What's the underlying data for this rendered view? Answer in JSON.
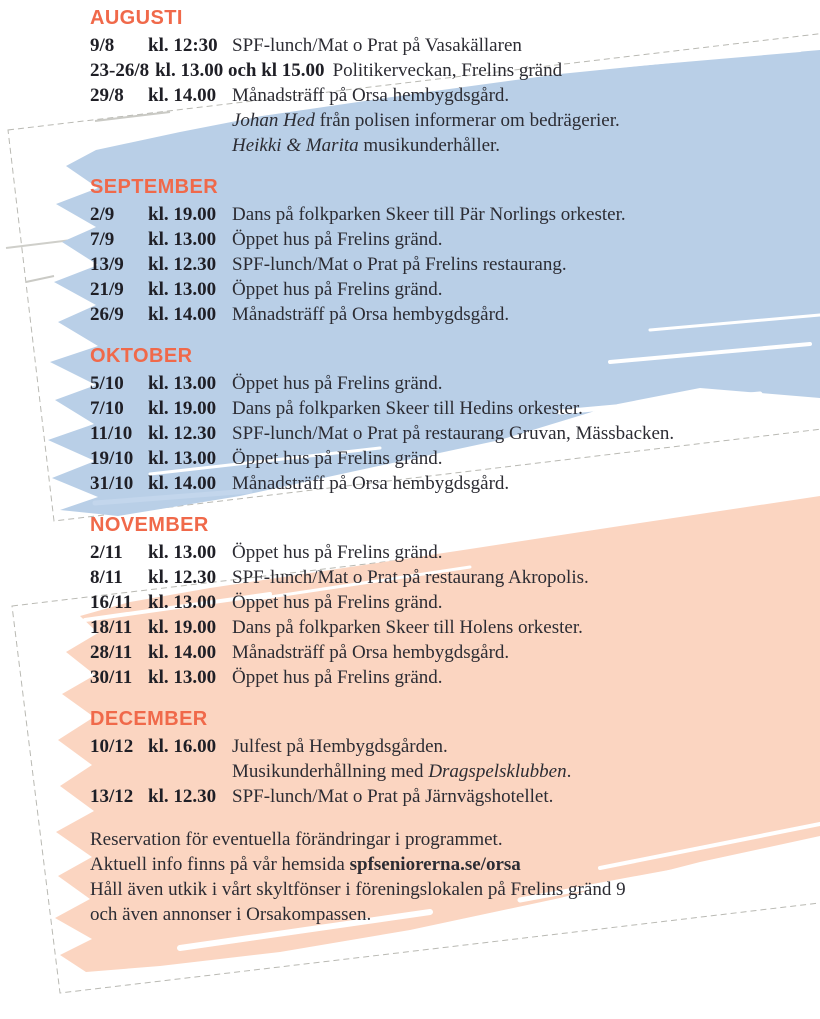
{
  "document_title": "SPF program hösten - Orsa",
  "decor": {
    "brush_blue": "#b9cfe7",
    "brush_peach": "#fbd5c1",
    "heading_orange": "#f0694a",
    "sheet_outline_gray": "#b9b9b3",
    "text_color": "#2c2c33"
  },
  "months": [
    {
      "name": "AUGUSTI",
      "events": [
        {
          "date": "9/8",
          "time": "kl. 12:30",
          "desc": [
            {
              "t": "SPF-lunch/Mat o Prat på Vasakällaren"
            }
          ]
        },
        {
          "date": "23-26/8",
          "time": "kl. 13.00 och kl 15.00",
          "desc": [
            {
              "t": "Politikerveckan, Frelins gränd"
            }
          ]
        },
        {
          "date": "29/8",
          "time": "kl. 14.00",
          "desc": [
            {
              "t": "Månadsträff på Orsa hembygdsgård."
            }
          ],
          "notes": [
            [
              {
                "t": "Johan Hed",
                "s": "i"
              },
              {
                "t": " från polisen informerar om bedrägerier."
              }
            ],
            [
              {
                "t": "Heikki & Marita",
                "s": "i"
              },
              {
                "t": " musikunderhåller."
              }
            ]
          ]
        }
      ]
    },
    {
      "name": "SEPTEMBER",
      "events": [
        {
          "date": "2/9",
          "time": "kl. 19.00",
          "desc": [
            {
              "t": "Dans på folkparken Skeer till Pär Norlings orkester."
            }
          ]
        },
        {
          "date": "7/9",
          "time": "kl. 13.00",
          "desc": [
            {
              "t": "Öppet hus på Frelins gränd."
            }
          ]
        },
        {
          "date": "13/9",
          "time": "kl. 12.30",
          "desc": [
            {
              "t": "SPF-lunch/Mat o Prat på Frelins restaurang."
            }
          ]
        },
        {
          "date": "21/9",
          "time": "kl. 13.00",
          "desc": [
            {
              "t": "Öppet hus på Frelins gränd."
            }
          ]
        },
        {
          "date": "26/9",
          "time": "kl. 14.00",
          "desc": [
            {
              "t": "Månadsträff på Orsa hembygdsgård."
            }
          ]
        }
      ]
    },
    {
      "name": "OKTOBER",
      "events": [
        {
          "date": "5/10",
          "time": "kl. 13.00",
          "desc": [
            {
              "t": "Öppet hus på Frelins gränd."
            }
          ]
        },
        {
          "date": "7/10",
          "time": "kl. 19.00",
          "desc": [
            {
              "t": "Dans på folkparken Skeer till Hedins orkester."
            }
          ]
        },
        {
          "date": "11/10",
          "time": "kl. 12.30",
          "desc": [
            {
              "t": "SPF-lunch/Mat o Prat på restaurang Gruvan, Mässbacken."
            }
          ]
        },
        {
          "date": "19/10",
          "time": "kl. 13.00",
          "desc": [
            {
              "t": "Öppet hus på Frelins gränd."
            }
          ]
        },
        {
          "date": "31/10",
          "time": "kl. 14.00",
          "desc": [
            {
              "t": "Månadsträff på Orsa hembygdsgård."
            }
          ]
        }
      ]
    },
    {
      "name": "NOVEMBER",
      "events": [
        {
          "date": "2/11",
          "time": "kl. 13.00",
          "desc": [
            {
              "t": "Öppet hus på Frelins gränd."
            }
          ]
        },
        {
          "date": "8/11",
          "time": "kl. 12.30",
          "desc": [
            {
              "t": "SPF-lunch/Mat o Prat på restaurang Akropolis."
            }
          ]
        },
        {
          "date": "16/11",
          "time": "kl. 13.00",
          "desc": [
            {
              "t": "Öppet hus på Frelins gränd."
            }
          ]
        },
        {
          "date": "18/11",
          "time": "kl. 19.00",
          "desc": [
            {
              "t": "Dans på folkparken Skeer till Holens orkester."
            }
          ]
        },
        {
          "date": "28/11",
          "time": "kl. 14.00",
          "desc": [
            {
              "t": "Månadsträff på Orsa hembygdsgård."
            }
          ]
        },
        {
          "date": "30/11",
          "time": "kl. 13.00",
          "desc": [
            {
              "t": "Öppet hus på Frelins gränd."
            }
          ]
        }
      ]
    },
    {
      "name": "DECEMBER",
      "events": [
        {
          "date": "10/12",
          "time": "kl. 16.00",
          "desc": [
            {
              "t": "Julfest på Hembygdsgården."
            }
          ],
          "notes": [
            [
              {
                "t": "Musikunderhållning med "
              },
              {
                "t": "Dragspelsklubben",
                "s": "i"
              },
              {
                "t": "."
              }
            ]
          ]
        },
        {
          "date": "13/12",
          "time": "kl. 12.30",
          "desc": [
            {
              "t": "SPF-lunch/Mat o Prat på Järnvägshotellet."
            }
          ]
        }
      ]
    }
  ],
  "footer": {
    "lines": [
      [
        {
          "t": "Reservation för eventuella förändringar i programmet."
        }
      ],
      [
        {
          "t": "Aktuell info finns på vår hemsida "
        },
        {
          "t": "spfseniorerna.se/orsa",
          "s": "b",
          "n": "website-url"
        }
      ],
      [
        {
          "t": "Håll även utkik i vårt skyltfönser i föreningslokalen på Frelins gränd 9"
        }
      ],
      [
        {
          "t": "och även annonser i Orsakompassen."
        }
      ]
    ]
  }
}
